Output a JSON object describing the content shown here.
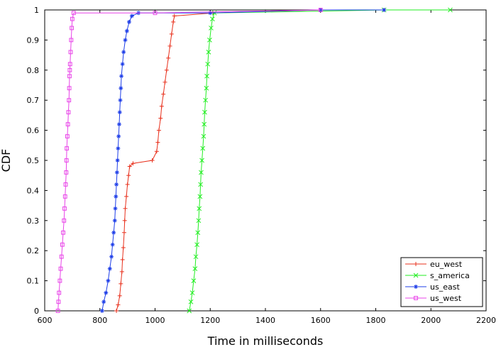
{
  "chart_data": {
    "type": "line",
    "title": "",
    "xlabel": "Time in milliseconds",
    "ylabel": "CDF",
    "xlim": [
      600,
      2200
    ],
    "ylim": [
      0,
      1
    ],
    "x_ticks": [
      "600",
      "800",
      "1000",
      "1200",
      "1400",
      "1600",
      "1800",
      "2000",
      "2200"
    ],
    "y_ticks": [
      "0",
      "0.1",
      "0.2",
      "0.3",
      "0.4",
      "0.5",
      "0.6",
      "0.7",
      "0.8",
      "0.9",
      "1"
    ],
    "grid": false,
    "legend_position": "bottom-right",
    "series": [
      {
        "name": "eu_west",
        "color": "#e8301c",
        "marker": "plus",
        "points": [
          [
            860,
            0
          ],
          [
            866,
            0.02
          ],
          [
            872,
            0.05
          ],
          [
            876,
            0.09
          ],
          [
            880,
            0.13
          ],
          [
            882,
            0.17
          ],
          [
            885,
            0.21
          ],
          [
            888,
            0.26
          ],
          [
            890,
            0.3
          ],
          [
            892,
            0.34
          ],
          [
            896,
            0.38
          ],
          [
            900,
            0.42
          ],
          [
            904,
            0.45
          ],
          [
            908,
            0.48
          ],
          [
            920,
            0.49
          ],
          [
            990,
            0.5
          ],
          [
            1006,
            0.53
          ],
          [
            1010,
            0.56
          ],
          [
            1014,
            0.6
          ],
          [
            1020,
            0.64
          ],
          [
            1024,
            0.68
          ],
          [
            1030,
            0.72
          ],
          [
            1036,
            0.76
          ],
          [
            1042,
            0.8
          ],
          [
            1048,
            0.84
          ],
          [
            1054,
            0.88
          ],
          [
            1060,
            0.92
          ],
          [
            1066,
            0.96
          ],
          [
            1070,
            0.98
          ],
          [
            1210,
            0.99
          ],
          [
            1600,
            1.0
          ],
          [
            1830,
            1.0
          ]
        ]
      },
      {
        "name": "s_america",
        "color": "#22ee22",
        "marker": "x",
        "points": [
          [
            1124,
            0
          ],
          [
            1130,
            0.03
          ],
          [
            1135,
            0.06
          ],
          [
            1140,
            0.1
          ],
          [
            1145,
            0.14
          ],
          [
            1148,
            0.18
          ],
          [
            1152,
            0.22
          ],
          [
            1155,
            0.26
          ],
          [
            1158,
            0.3
          ],
          [
            1160,
            0.34
          ],
          [
            1163,
            0.38
          ],
          [
            1165,
            0.42
          ],
          [
            1167,
            0.46
          ],
          [
            1170,
            0.5
          ],
          [
            1173,
            0.54
          ],
          [
            1176,
            0.58
          ],
          [
            1178,
            0.62
          ],
          [
            1180,
            0.66
          ],
          [
            1183,
            0.7
          ],
          [
            1186,
            0.74
          ],
          [
            1188,
            0.78
          ],
          [
            1191,
            0.82
          ],
          [
            1194,
            0.86
          ],
          [
            1198,
            0.9
          ],
          [
            1203,
            0.94
          ],
          [
            1208,
            0.97
          ],
          [
            1215,
            0.99
          ],
          [
            1830,
            1.0
          ],
          [
            2070,
            1.0
          ]
        ]
      },
      {
        "name": "us_east",
        "color": "#1c3ce8",
        "marker": "asterisk",
        "points": [
          [
            808,
            0
          ],
          [
            814,
            0.03
          ],
          [
            822,
            0.06
          ],
          [
            830,
            0.1
          ],
          [
            836,
            0.14
          ],
          [
            842,
            0.18
          ],
          [
            846,
            0.22
          ],
          [
            850,
            0.26
          ],
          [
            854,
            0.3
          ],
          [
            856,
            0.34
          ],
          [
            858,
            0.38
          ],
          [
            860,
            0.42
          ],
          [
            862,
            0.46
          ],
          [
            864,
            0.5
          ],
          [
            866,
            0.54
          ],
          [
            868,
            0.58
          ],
          [
            870,
            0.62
          ],
          [
            872,
            0.66
          ],
          [
            874,
            0.7
          ],
          [
            876,
            0.74
          ],
          [
            878,
            0.78
          ],
          [
            882,
            0.82
          ],
          [
            886,
            0.86
          ],
          [
            892,
            0.9
          ],
          [
            898,
            0.93
          ],
          [
            906,
            0.96
          ],
          [
            916,
            0.98
          ],
          [
            940,
            0.99
          ],
          [
            1200,
            0.99
          ],
          [
            1600,
            1.0
          ],
          [
            1830,
            1.0
          ]
        ]
      },
      {
        "name": "us_west",
        "color": "#e844e8",
        "marker": "square",
        "points": [
          [
            648,
            0
          ],
          [
            650,
            0.03
          ],
          [
            652,
            0.06
          ],
          [
            655,
            0.1
          ],
          [
            658,
            0.14
          ],
          [
            661,
            0.18
          ],
          [
            664,
            0.22
          ],
          [
            667,
            0.26
          ],
          [
            670,
            0.3
          ],
          [
            672,
            0.34
          ],
          [
            674,
            0.38
          ],
          [
            676,
            0.42
          ],
          [
            678,
            0.46
          ],
          [
            679,
            0.5
          ],
          [
            680,
            0.54
          ],
          [
            682,
            0.58
          ],
          [
            684,
            0.62
          ],
          [
            686,
            0.66
          ],
          [
            688,
            0.7
          ],
          [
            689,
            0.74
          ],
          [
            690,
            0.78
          ],
          [
            691,
            0.8
          ],
          [
            692,
            0.82
          ],
          [
            694,
            0.86
          ],
          [
            696,
            0.9
          ],
          [
            698,
            0.94
          ],
          [
            700,
            0.97
          ],
          [
            705,
            0.99
          ],
          [
            1000,
            0.99
          ],
          [
            1600,
            1.0
          ]
        ]
      }
    ]
  }
}
